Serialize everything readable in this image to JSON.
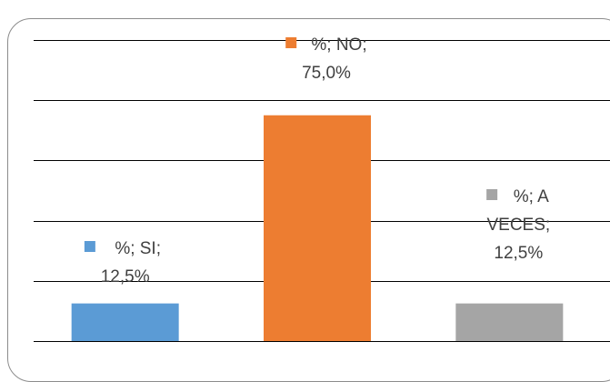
{
  "chart_data": {
    "type": "bar",
    "categories": [
      "SI",
      "NO",
      "A VECES"
    ],
    "values": [
      12.5,
      75.0,
      12.5
    ],
    "series": [
      {
        "values": [
          12.5,
          75.0,
          12.5
        ]
      }
    ],
    "ylim": [
      0,
      100
    ],
    "grid": true,
    "legend": "none",
    "colors": [
      "#5b9bd5",
      "#ed7d31",
      "#a5a5a5"
    ],
    "data_labels": [
      {
        "lines": [
          "%; SI;",
          "12,5%"
        ]
      },
      {
        "lines": [
          "%; NO;",
          "75,0%"
        ]
      },
      {
        "lines": [
          "%; A",
          "VECES;",
          "12,5%"
        ]
      }
    ]
  }
}
